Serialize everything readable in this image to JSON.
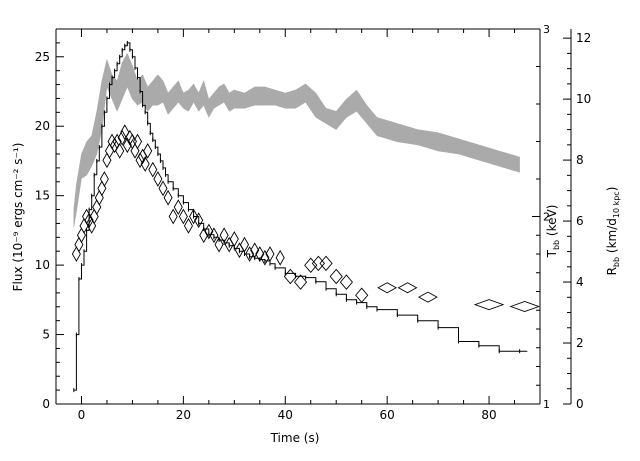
{
  "chart_data": {
    "type": "line",
    "xlabel": "Time (s)",
    "ylabel": "Flux (10⁻⁹ ergs cm⁻² s⁻¹)",
    "y2label_mid": "T",
    "y2label_mid_sub": "bb",
    "y2label_mid_unit": " (keV)",
    "y2label_right": "R",
    "y2label_right_sub": "bb",
    "y2label_right_unit": " (km/d",
    "y2label_right_unit_sub": "10 kpc",
    "y2label_right_unit_end": ")",
    "xlim": [
      -5,
      90
    ],
    "ylim": [
      0,
      27
    ],
    "temp_lim": [
      1,
      3
    ],
    "radius_lim": [
      0,
      12.3
    ],
    "x_ticks": [
      0,
      20,
      40,
      60,
      80
    ],
    "x_tick_labels": [
      "0",
      "20",
      "40",
      "60",
      "80"
    ],
    "y_ticks": [
      0,
      5,
      10,
      15,
      20,
      25
    ],
    "y_tick_labels": [
      "0",
      "5",
      "10",
      "15",
      "20",
      "25"
    ],
    "temp_ticks": [
      1,
      2,
      3
    ],
    "temp_tick_labels": [
      "1",
      "2",
      "3"
    ],
    "radius_ticks": [
      0,
      2,
      4,
      6,
      8,
      10,
      12
    ],
    "radius_tick_labels": [
      "0",
      "2",
      "4",
      "6",
      "8",
      "10",
      "12"
    ],
    "series": [
      {
        "kind": "flux_step",
        "x": [
          -1.5,
          -1,
          -0.5,
          0,
          0.5,
          1,
          1.5,
          2,
          2.5,
          3,
          3.5,
          4,
          4.5,
          5,
          5.5,
          6,
          6.5,
          7,
          7.5,
          8,
          8.5,
          9,
          9.5,
          10,
          10.5,
          11,
          11.5,
          12,
          12.5,
          13,
          13.5,
          14,
          14.5,
          15,
          15.5,
          16,
          16.5,
          17,
          18,
          19,
          20,
          21,
          22,
          23,
          24,
          25,
          26,
          27,
          28,
          29,
          30,
          31,
          32,
          33,
          34,
          35,
          36,
          37,
          38,
          40,
          42,
          44,
          46,
          48,
          50,
          52,
          54,
          56,
          58,
          62,
          66,
          70,
          74,
          78,
          82,
          86
        ],
        "values": [
          1,
          5,
          9,
          10,
          11,
          12.5,
          14,
          15,
          16.5,
          17.5,
          18.5,
          20,
          21,
          22,
          23,
          23.5,
          24,
          24.5,
          25,
          25.5,
          25.8,
          26,
          25.5,
          25,
          24.2,
          23.5,
          22.5,
          21.5,
          21,
          20.2,
          19.5,
          19,
          18.5,
          18,
          17.5,
          17,
          16.5,
          16,
          15.5,
          15,
          14.5,
          14,
          13.5,
          13,
          12.6,
          12.2,
          12,
          11.8,
          11.6,
          11.4,
          11.2,
          11,
          10.8,
          10.6,
          10.5,
          10.4,
          10.3,
          10.1,
          9.8,
          9.4,
          9.2,
          9.1,
          8.8,
          8.3,
          7.9,
          7.5,
          7.3,
          7,
          6.8,
          6.4,
          6,
          5.5,
          4.5,
          4.2,
          3.8,
          3.8
        ]
      },
      {
        "kind": "temperature_diamonds",
        "x": [
          -1,
          -0.5,
          0,
          0.5,
          1,
          1.5,
          2,
          2.5,
          3,
          3.5,
          4,
          4.5,
          5,
          5.5,
          6,
          6.5,
          7,
          7.5,
          8,
          8.5,
          9,
          9.5,
          10,
          10.5,
          11,
          11.5,
          12,
          12.5,
          13,
          14,
          15,
          16,
          17,
          18,
          19,
          20,
          21,
          22,
          23,
          24,
          25,
          26,
          27,
          28,
          29,
          30,
          31,
          32,
          33,
          34,
          35,
          36,
          37,
          39,
          41,
          43,
          45,
          46.5,
          48,
          50,
          52,
          55,
          60,
          64,
          68,
          80,
          87
        ],
        "values": [
          1.8,
          1.85,
          1.9,
          1.95,
          2.0,
          1.98,
          1.95,
          2.0,
          2.05,
          2.1,
          2.15,
          2.2,
          2.3,
          2.35,
          2.4,
          2.38,
          2.4,
          2.35,
          2.42,
          2.45,
          2.38,
          2.42,
          2.4,
          2.35,
          2.4,
          2.3,
          2.32,
          2.28,
          2.35,
          2.25,
          2.2,
          2.15,
          2.1,
          2.0,
          2.05,
          2.0,
          1.95,
          2.0,
          1.98,
          1.9,
          1.92,
          1.9,
          1.85,
          1.9,
          1.85,
          1.88,
          1.82,
          1.85,
          1.8,
          1.82,
          1.8,
          1.78,
          1.8,
          1.78,
          1.68,
          1.65,
          1.74,
          1.75,
          1.75,
          1.68,
          1.65,
          1.58,
          1.62,
          1.62,
          1.57,
          1.53,
          1.52
        ]
      },
      {
        "kind": "radius_band",
        "x": [
          -1.5,
          -1,
          0,
          1,
          2,
          3,
          4,
          5,
          6,
          7,
          8,
          9,
          10,
          11,
          12,
          13,
          14,
          15,
          16,
          17,
          18,
          19,
          20,
          21,
          22,
          23,
          24,
          25,
          26,
          27,
          28,
          29,
          30,
          32,
          34,
          36,
          38,
          40,
          42,
          44,
          46,
          48,
          50,
          52,
          54,
          56,
          58,
          62,
          66,
          70,
          74,
          78,
          82,
          86
        ],
        "low": [
          5.8,
          6.3,
          7.4,
          7.5,
          7.8,
          8.2,
          9.0,
          10.4,
          10.0,
          9.6,
          10.0,
          10.4,
          10.0,
          9.8,
          9.9,
          9.6,
          9.8,
          9.8,
          9.9,
          9.5,
          9.7,
          9.9,
          9.7,
          9.6,
          9.9,
          9.6,
          9.8,
          9.4,
          9.7,
          9.8,
          9.9,
          9.6,
          9.7,
          9.7,
          9.8,
          9.8,
          9.8,
          9.7,
          9.7,
          9.9,
          9.4,
          9.2,
          9.0,
          9.4,
          9.6,
          9.2,
          8.8,
          8.6,
          8.5,
          8.3,
          8.2,
          8.0,
          7.8,
          7.6
        ],
        "high": [
          6.4,
          7.2,
          8.2,
          8.6,
          8.8,
          9.6,
          10.6,
          11.3,
          10.8,
          10.6,
          11.2,
          11.5,
          11.1,
          10.6,
          10.8,
          10.4,
          10.6,
          10.8,
          10.6,
          10.2,
          10.4,
          10.6,
          10.2,
          10.3,
          10.5,
          10.2,
          10.6,
          10.0,
          10.2,
          10.4,
          10.5,
          10.2,
          10.3,
          10.2,
          10.4,
          10.4,
          10.3,
          10.2,
          10.3,
          10.5,
          10.2,
          9.7,
          9.6,
          10.0,
          10.3,
          9.8,
          9.4,
          9.2,
          9.0,
          8.9,
          8.7,
          8.5,
          8.3,
          8.1
        ]
      }
    ]
  },
  "colors": {
    "background": "#ffffff",
    "axes": "#000000",
    "band": "#aaaaaa",
    "flux": "#000000",
    "diamond": "#000000"
  }
}
